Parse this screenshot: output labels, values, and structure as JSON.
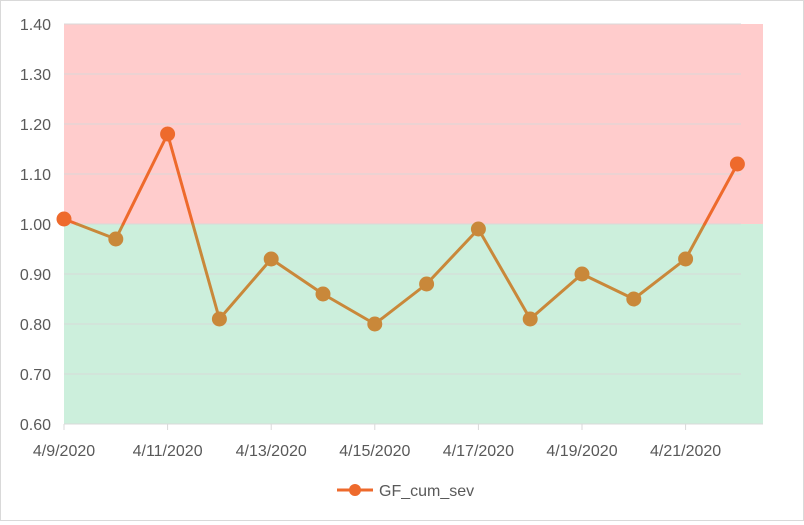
{
  "chart_data": {
    "type": "line",
    "x": [
      "4/9/2020",
      "4/10/2020",
      "4/11/2020",
      "4/12/2020",
      "4/13/2020",
      "4/14/2020",
      "4/15/2020",
      "4/16/2020",
      "4/17/2020",
      "4/18/2020",
      "4/19/2020",
      "4/20/2020",
      "4/21/2020",
      "4/22/2020"
    ],
    "x_tick_labels": [
      "4/9/2020",
      "4/11/2020",
      "4/13/2020",
      "4/15/2020",
      "4/17/2020",
      "4/19/2020",
      "4/21/2020"
    ],
    "series": [
      {
        "name": "GF_cum_sev",
        "values": [
          1.01,
          0.97,
          1.18,
          0.81,
          0.93,
          0.86,
          0.8,
          0.88,
          0.99,
          0.81,
          0.9,
          0.85,
          0.93,
          1.12
        ]
      }
    ],
    "y_tick_labels": [
      "0.60",
      "0.70",
      "0.80",
      "0.90",
      "1.00",
      "1.10",
      "1.20",
      "1.30",
      "1.40"
    ],
    "ylim": [
      0.6,
      1.4
    ],
    "threshold": 1.0,
    "grid": true,
    "legend_position": "bottom",
    "colors": {
      "above_band": "#ffcccc",
      "below_band": "#ccefdc",
      "line_above": "#ee6a2c",
      "line_below": "#c9883a",
      "gridline": "#d9d9d9"
    }
  }
}
